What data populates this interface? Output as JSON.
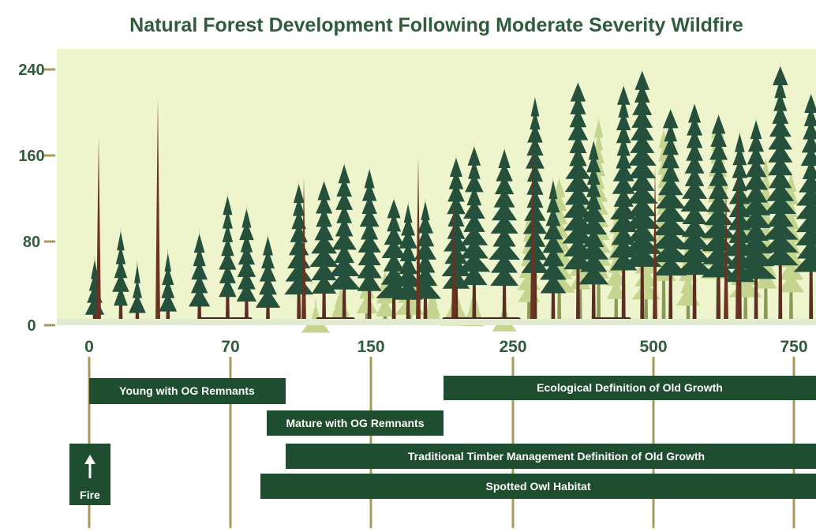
{
  "header": {
    "title": "Natural Forest Development Following Moderate Severity Wildfire"
  },
  "height_axis": {
    "ticks": [
      "240",
      "160",
      "80",
      "0"
    ]
  },
  "age_axis": {
    "ticks": [
      "0",
      "70",
      "150",
      "250",
      "500",
      "750"
    ]
  },
  "stages": [
    "Young with OG Remnants",
    "Ecological Definition of Old Growth",
    "Mature with OG Remnants",
    "Traditional Timber Management Definition of Old Growth",
    "Spotted Owl Habitat"
  ],
  "event": {
    "label": "Fire"
  }
}
